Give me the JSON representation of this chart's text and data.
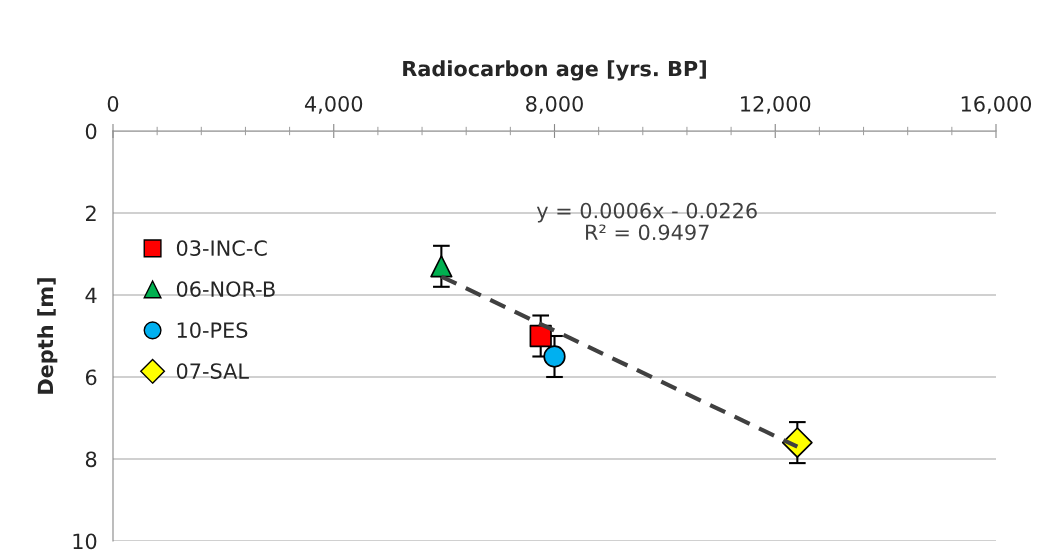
{
  "chart_data": {
    "type": "scatter",
    "xlabel": "Radiocarbon age [yrs. BP]",
    "ylabel": "Depth [m]",
    "xlim": [
      0,
      16000
    ],
    "xticks": [
      0,
      {
        "value": 4000,
        "label": "4,000"
      },
      {
        "value": 8000,
        "label": "8,000"
      },
      {
        "value": 12000,
        "label": "12,000"
      },
      {
        "value": 16000,
        "label": "16,000"
      }
    ],
    "ylim": [
      10,
      0
    ],
    "yticks": [
      0,
      2,
      4,
      6,
      8,
      10
    ],
    "grid": "y",
    "legend": "left",
    "series": [
      {
        "name": "03-INC-C",
        "color": "#ff0000",
        "marker": "square",
        "x": [
          7750
        ],
        "values": [
          5.0
        ],
        "errors": [
          0.5
        ]
      },
      {
        "name": "06-NOR-B",
        "color": "#00b050",
        "marker": "triangle",
        "x": [
          5950
        ],
        "values": [
          3.3
        ],
        "errors": [
          0.5
        ]
      },
      {
        "name": "10-PES",
        "color": "#00b0f0",
        "marker": "circle",
        "x": [
          8000
        ],
        "values": [
          5.5
        ],
        "errors": [
          0.5
        ]
      },
      {
        "name": "07-SAL",
        "color": "#ffff00",
        "marker": "diamond",
        "x": [
          12400
        ],
        "values": [
          7.6
        ],
        "errors": [
          0.5
        ]
      },
      {
        "type": "line",
        "color": "#404040",
        "line_style": "dashed",
        "marker": "none",
        "x": [
          5950,
          12400
        ],
        "values": [
          3.55,
          7.7
        ]
      }
    ],
    "annotations": [
      "y = 0.0006x - 0.0226\nR² = 0.9497"
    ]
  }
}
